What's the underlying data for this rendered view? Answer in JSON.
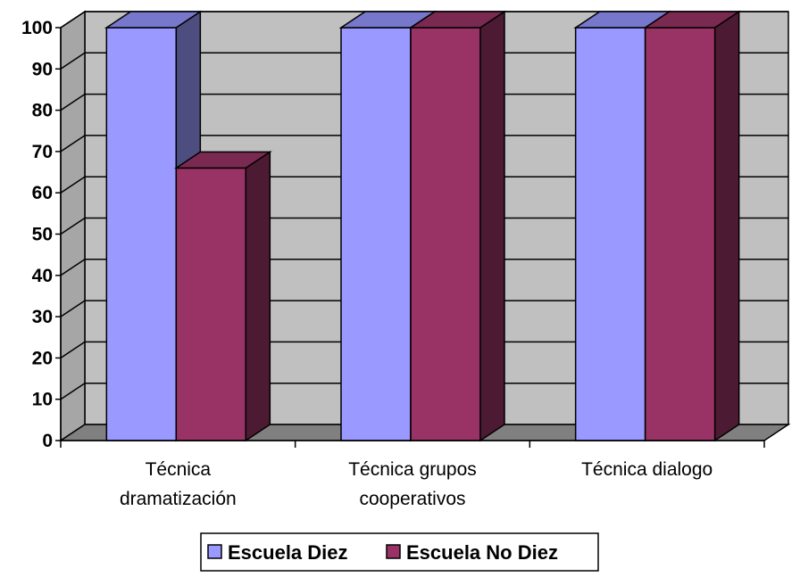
{
  "chart_data": {
    "type": "bar",
    "categories": [
      "Técnica dramatización",
      "Técnica grupos cooperativos",
      "Técnica dialogo"
    ],
    "category_lines": [
      [
        "Técnica",
        "dramatización"
      ],
      [
        "Técnica grupos",
        "cooperativos"
      ],
      [
        "Técnica dialogo"
      ]
    ],
    "series": [
      {
        "name": "Escuela Diez",
        "values": [
          100,
          100,
          100
        ],
        "color": "#9999ff",
        "side_color": "#4d4d80",
        "top_color": "#7777cc"
      },
      {
        "name": "Escuela No Diez",
        "values": [
          66,
          100,
          100
        ],
        "color": "#993366",
        "side_color": "#4d1a33",
        "top_color": "#7a2951"
      }
    ],
    "ylim": [
      0,
      100
    ],
    "yticks": [
      0,
      10,
      20,
      30,
      40,
      50,
      60,
      70,
      80,
      90,
      100
    ],
    "grid": true,
    "three_d": true,
    "wall_color": "#c0c0c0",
    "floor_color": "#808080",
    "legend_position": "bottom",
    "title": "",
    "xlabel": "",
    "ylabel": ""
  }
}
